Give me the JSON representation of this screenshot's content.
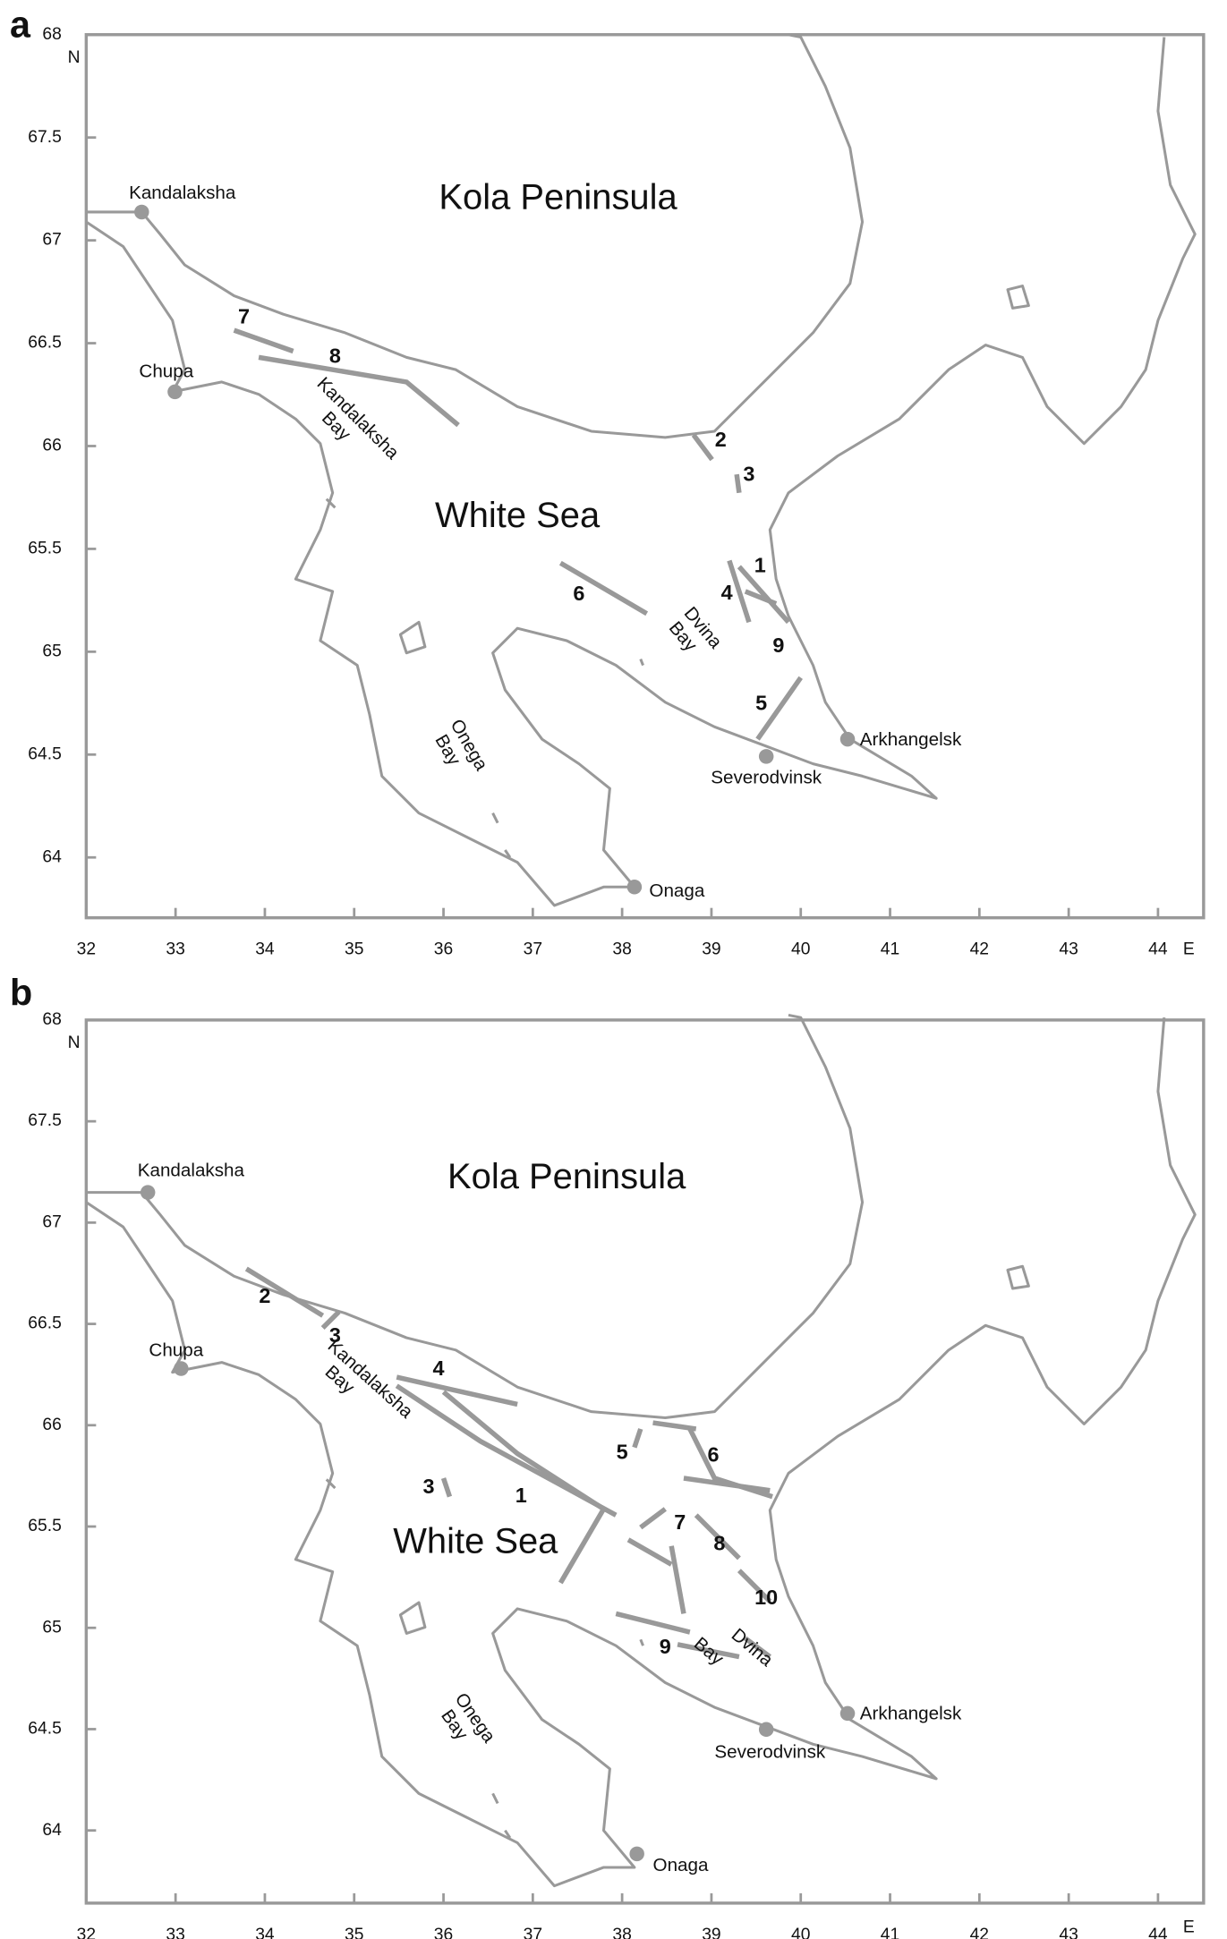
{
  "panels": [
    {
      "label": "a",
      "region": "Kola Peninsula",
      "sea": "White Sea",
      "places": [
        "Kandalaksha",
        "Chupa",
        "Arkhangelsk",
        "Severodvinsk",
        "Onaga"
      ],
      "bays": [
        [
          "Kandalaksha",
          "Bay"
        ],
        [
          "Dvina",
          "Bay"
        ],
        [
          "Onega",
          "Bay"
        ]
      ],
      "routes": [
        7,
        8,
        2,
        3,
        6,
        1,
        4,
        9,
        5
      ]
    },
    {
      "label": "b",
      "region": "Kola Peninsula",
      "sea": "White Sea",
      "places": [
        "Kandalaksha",
        "Chupa",
        "Arkhangelsk",
        "Severodvinsk",
        "Onaga"
      ],
      "bays": [
        [
          "Kandalaksha",
          "Bay"
        ],
        [
          "Dvina",
          "Bay"
        ],
        [
          "Onega",
          "Bay"
        ]
      ],
      "routes": [
        2,
        3,
        4,
        5,
        6,
        3,
        1,
        7,
        8,
        10,
        9
      ]
    }
  ],
  "axes": {
    "xticks": [
      32,
      33,
      34,
      35,
      36,
      37,
      38,
      39,
      40,
      41,
      42,
      43,
      44
    ],
    "x_unit": "E",
    "yticks": [
      64,
      64.5,
      65,
      65.5,
      66,
      66.5,
      67,
      67.5,
      68
    ],
    "y_unit": "N"
  }
}
